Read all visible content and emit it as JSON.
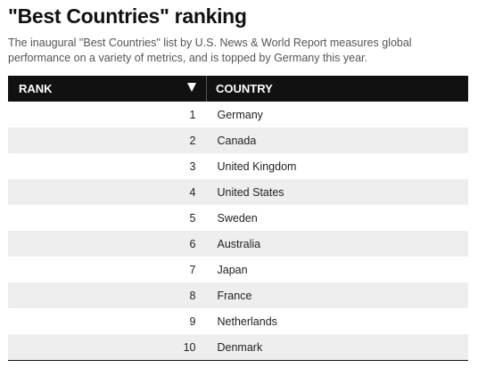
{
  "header": {
    "title": "\"Best Countries\" ranking",
    "subtitle": "The inaugural \"Best Countries\" list by U.S. News & World Report measures global performance on a variety of metrics, and is topped by Germany this year."
  },
  "table": {
    "columns": [
      "RANK",
      "COUNTRY"
    ],
    "sort_icon": "sort-descending-triangle",
    "rows": [
      {
        "rank": "1",
        "country": "Germany"
      },
      {
        "rank": "2",
        "country": "Canada"
      },
      {
        "rank": "3",
        "country": "United Kingdom"
      },
      {
        "rank": "4",
        "country": "United States"
      },
      {
        "rank": "5",
        "country": "Sweden"
      },
      {
        "rank": "6",
        "country": "Australia"
      },
      {
        "rank": "7",
        "country": "Japan"
      },
      {
        "rank": "8",
        "country": "France"
      },
      {
        "rank": "9",
        "country": "Netherlands"
      },
      {
        "rank": "10",
        "country": "Denmark"
      }
    ]
  },
  "colors": {
    "header_background": "#111111",
    "header_text": "#ffffff",
    "stripe_row": "#eeeeee"
  }
}
